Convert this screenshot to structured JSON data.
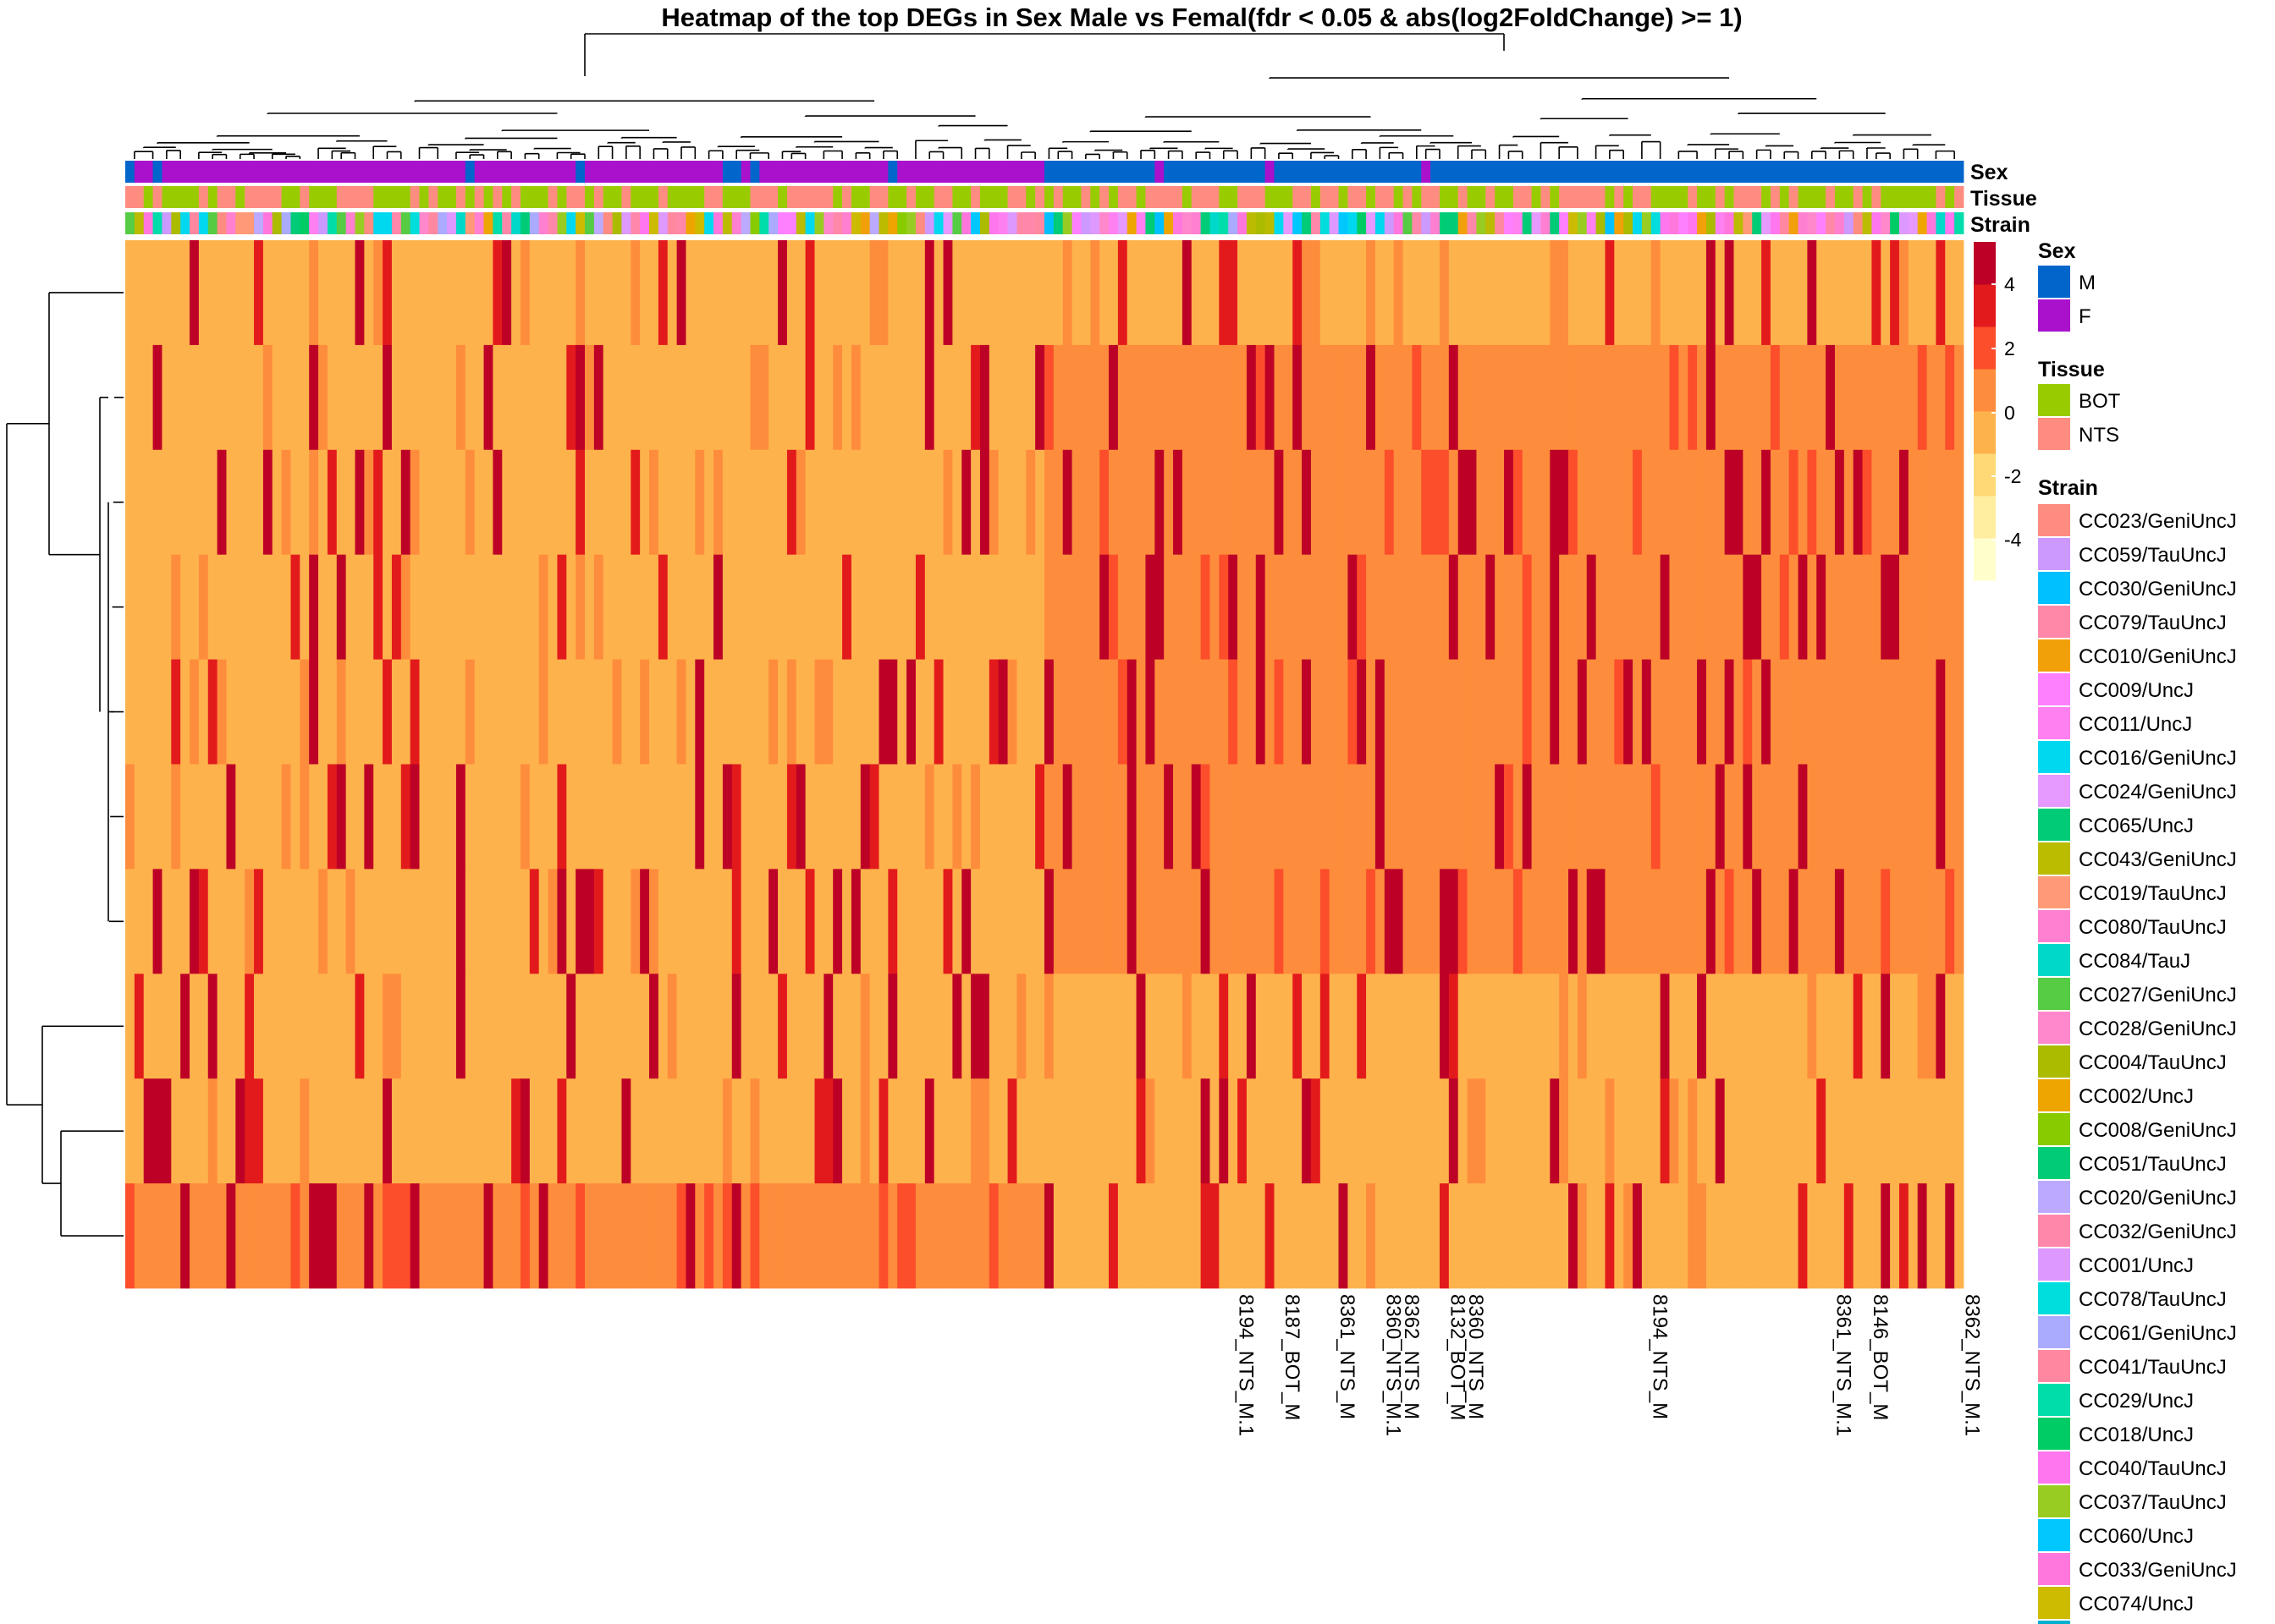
{
  "chart_data": {
    "type": "heatmap",
    "title": "Heatmap of the top DEGs in Sex Male vs Femal(fdr < 0.05 & abs(log2FoldChange) >= 1)",
    "annotation_rows": [
      "Sex",
      "Tissue",
      "Strain"
    ],
    "color_scale": {
      "ticks": [
        4,
        2,
        0,
        -2,
        -4
      ],
      "colors": [
        "#FFFFCC",
        "#FFEDA0",
        "#FED976",
        "#FEB24C",
        "#FD8D3C",
        "#FC4E2A",
        "#E31A1C",
        "#BD0026"
      ]
    },
    "legend": {
      "sex": {
        "title": "Sex",
        "items": [
          {
            "label": "M",
            "color": "#0066CC"
          },
          {
            "label": "F",
            "color": "#AA11CC"
          }
        ]
      },
      "tissue": {
        "title": "Tissue",
        "items": [
          {
            "label": "BOT",
            "color": "#99CC00"
          },
          {
            "label": "NTS",
            "color": "#FF8C80"
          }
        ]
      },
      "strain": {
        "title": "Strain",
        "items": [
          {
            "label": "CC023/GeniUncJ",
            "color": "#FF8C80"
          },
          {
            "label": "CC059/TauUncJ",
            "color": "#CC99FF"
          },
          {
            "label": "CC030/GeniUncJ",
            "color": "#00C0FF"
          },
          {
            "label": "CC079/TauUncJ",
            "color": "#FF88A8"
          },
          {
            "label": "CC010/GeniUncJ",
            "color": "#F2A00A"
          },
          {
            "label": "CC009/UncJ",
            "color": "#FF80FF"
          },
          {
            "label": "CC011/UncJ",
            "color": "#FF80F0"
          },
          {
            "label": "CC016/GeniUncJ",
            "color": "#00D8F0"
          },
          {
            "label": "CC024/GeniUncJ",
            "color": "#E699FF"
          },
          {
            "label": "CC065/UncJ",
            "color": "#00CC77"
          },
          {
            "label": "CC043/GeniUncJ",
            "color": "#BBBB00"
          },
          {
            "label": "CC019/TauUncJ",
            "color": "#FF9977"
          },
          {
            "label": "CC080/TauUncJ",
            "color": "#FF80D0"
          },
          {
            "label": "CC084/TauJ",
            "color": "#00D9C9"
          },
          {
            "label": "CC027/GeniUncJ",
            "color": "#55CC44"
          },
          {
            "label": "CC028/GeniUncJ",
            "color": "#FF88CC"
          },
          {
            "label": "CC004/TauUncJ",
            "color": "#AABB00"
          },
          {
            "label": "CC002/UncJ",
            "color": "#EEA500"
          },
          {
            "label": "CC008/GeniUncJ",
            "color": "#88CC00"
          },
          {
            "label": "CC051/TauUncJ",
            "color": "#00CC77"
          },
          {
            "label": "CC020/GeniUncJ",
            "color": "#BBAAFF"
          },
          {
            "label": "CC032/GeniUncJ",
            "color": "#FF88AA"
          },
          {
            "label": "CC001/UncJ",
            "color": "#DD99FF"
          },
          {
            "label": "CC078/TauUncJ",
            "color": "#00DDDD"
          },
          {
            "label": "CC061/GeniUncJ",
            "color": "#AAAAFF"
          },
          {
            "label": "CC041/TauUncJ",
            "color": "#FF88A0"
          },
          {
            "label": "CC029/UncJ",
            "color": "#00DDAA"
          },
          {
            "label": "CC018/UncJ",
            "color": "#00CC66"
          },
          {
            "label": "CC040/TauUncJ",
            "color": "#FF77EE"
          },
          {
            "label": "CC037/TauUncJ",
            "color": "#99CC22"
          },
          {
            "label": "CC060/UncJ",
            "color": "#00C8FF"
          },
          {
            "label": "CC033/GeniUncJ",
            "color": "#FF77DD"
          },
          {
            "label": "CC074/UncJ",
            "color": "#CCBB00"
          }
        ]
      }
    },
    "visible_column_labels": [
      "8194_NTS_M.1",
      "8187_BOT_M",
      "8361_NTS_M",
      "8360_NTS_M.1",
      "8362_NTS_M",
      "8132_BOT_M",
      "8360_NTS_M",
      "8194_NTS_M",
      "8361_NTS_M.1",
      "8146_BOT_M",
      "8362_NTS_M.1"
    ],
    "n_columns": 200,
    "n_female_columns": 100,
    "n_rows": 10,
    "row_blocks": [
      {
        "rows": 1,
        "base": {
          "F": -0.5,
          "M": -0.5
        }
      },
      {
        "rows": 1,
        "base": {
          "F": -0.5,
          "M": 0.4
        }
      },
      {
        "rows": 5,
        "base": {
          "F": -0.5,
          "M": 0.5
        }
      },
      {
        "rows": 1,
        "base": {
          "F": -0.5,
          "M": -0.5
        }
      },
      {
        "rows": 1,
        "base": {
          "F": -0.5,
          "M": -0.5
        }
      },
      {
        "rows": 1,
        "base": {
          "F": 0.5,
          "M": -0.5
        }
      }
    ]
  }
}
